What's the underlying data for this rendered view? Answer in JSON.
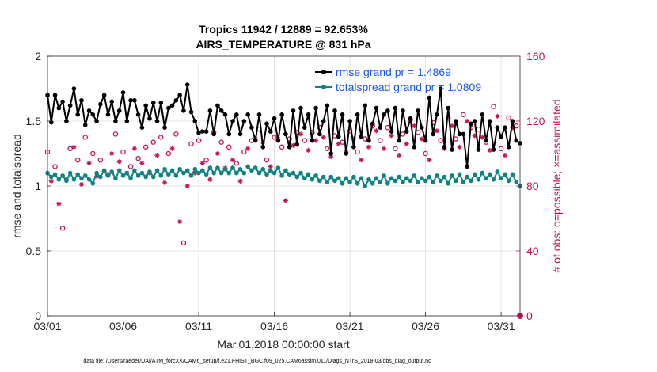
{
  "chart_data": {
    "type": "line",
    "title_line1": "Tropics 11942 / 12889 = 92.653%",
    "title_line2": "AIRS_TEMPERATURE @ 831 hPa",
    "xlabel": "Mar.01,2018 00:00:00 start",
    "ylabel": "rmse and totalspread",
    "ylabel_right": "# of obs: o=possible; ×=assimilated",
    "xlim": [
      0,
      31.25
    ],
    "ylim": [
      0,
      2
    ],
    "ylim_right": [
      0,
      160
    ],
    "x_ticks": [
      0,
      5,
      10,
      15,
      20,
      25,
      30
    ],
    "x_tick_labels": [
      "03/01",
      "03/06",
      "03/11",
      "03/16",
      "03/21",
      "03/26",
      "03/31"
    ],
    "y_ticks": [
      0,
      0.5,
      1,
      1.5,
      2
    ],
    "y_tick_labels": [
      "0",
      "0.5",
      "1",
      "1.5",
      "2"
    ],
    "y_right_ticks": [
      0,
      40,
      80,
      120,
      160
    ],
    "y_right_tick_labels": [
      "0",
      "40",
      "80",
      "120",
      "160"
    ],
    "grid": true,
    "legend_position": "top-right",
    "footer": "data file: /Users/raeder/DAI/ATM_forcXX/CAM6_setup/f.e21.FHIST_BGC.f09_025.CAM6assim.011/Diags_NTrS_2018-03/obs_diag_output.nc",
    "colors": {
      "rmse": "#000000",
      "spread": "#0f8282",
      "obs": "#c8145a"
    },
    "rmse_segments": [
      [
        [
          0,
          1.7
        ],
        [
          0.25,
          1.49
        ],
        [
          0.5,
          1.7
        ],
        [
          0.75,
          1.6
        ],
        [
          1,
          1.65
        ],
        [
          1.25,
          1.5
        ],
        [
          1.5,
          1.62
        ],
        [
          1.75,
          1.75
        ],
        [
          2,
          1.55
        ],
        [
          2.25,
          1.66
        ],
        [
          2.5,
          1.47
        ],
        [
          2.75,
          1.58
        ],
        [
          3,
          1.55
        ],
        [
          3.25,
          1.5
        ],
        [
          3.5,
          1.63
        ],
        [
          3.75,
          1.7
        ],
        [
          4,
          1.55
        ],
        [
          4.25,
          1.65
        ],
        [
          4.5,
          1.5
        ],
        [
          4.75,
          1.58
        ],
        [
          5,
          1.72
        ],
        [
          5.25,
          1.5
        ],
        [
          5.5,
          1.66
        ],
        [
          5.75,
          1.66
        ],
        [
          6,
          1.55
        ],
        [
          6.25,
          1.45
        ],
        [
          6.5,
          1.62
        ],
        [
          6.75,
          1.52
        ],
        [
          7,
          1.64
        ],
        [
          7.25,
          1.5
        ],
        [
          7.5,
          1.64
        ],
        [
          7.75,
          1.45
        ],
        [
          8,
          1.6
        ],
        [
          8.25,
          1.62
        ],
        [
          8.5,
          1.66
        ],
        [
          8.75,
          1.7
        ],
        [
          9,
          1.58
        ],
        [
          9.25,
          1.78
        ],
        [
          9.5,
          1.57
        ],
        [
          9.75,
          1.5
        ],
        [
          10,
          1.41
        ],
        [
          10.25,
          1.42
        ],
        [
          10.5,
          1.42
        ],
        [
          10.75,
          1.58
        ],
        [
          11,
          1.4
        ],
        [
          11.25,
          1.62
        ],
        [
          11.5,
          1.58
        ],
        [
          11.75,
          1.55
        ],
        [
          12,
          1.4
        ],
        [
          12.25,
          1.5
        ],
        [
          12.5,
          1.55
        ],
        [
          12.75,
          1.4
        ],
        [
          13,
          1.5
        ]
      ],
      [
        [
          13.25,
          1.55
        ],
        [
          13.5,
          1.45
        ],
        [
          13.75,
          1.35
        ],
        [
          14,
          1.55
        ],
        [
          14.25,
          1.3
        ],
        [
          14.5,
          1.48
        ],
        [
          14.75,
          1.42
        ],
        [
          15,
          1.52
        ],
        [
          15.25,
          1.35
        ],
        [
          15.5,
          1.55
        ],
        [
          15.75,
          1.4
        ],
        [
          16,
          1.3
        ],
        [
          16.25,
          1.58
        ],
        [
          16.5,
          1.32
        ],
        [
          16.75,
          1.6
        ],
        [
          17,
          1.45
        ],
        [
          17.25,
          1.55
        ],
        [
          17.5,
          1.35
        ],
        [
          17.75,
          1.6
        ],
        [
          18,
          1.4
        ],
        [
          18.25,
          1.5
        ],
        [
          18.5,
          1.62
        ],
        [
          18.75,
          1.25
        ],
        [
          19,
          1.58
        ],
        [
          19.25,
          1.38
        ],
        [
          19.5,
          1.55
        ],
        [
          19.75,
          1.25
        ],
        [
          20,
          1.5
        ],
        [
          20.25,
          1.3
        ],
        [
          20.5,
          1.55
        ],
        [
          20.75,
          1.38
        ],
        [
          21,
          1.62
        ],
        [
          21.25,
          1.35
        ],
        [
          21.5,
          1.48
        ],
        [
          21.75,
          1.6
        ],
        [
          22,
          1.45
        ],
        [
          22.25,
          1.55
        ],
        [
          22.5,
          1.58
        ],
        [
          22.75,
          1.42
        ],
        [
          23,
          1.6
        ],
        [
          23.25,
          1.35
        ],
        [
          23.5,
          1.58
        ],
        [
          23.75,
          1.42
        ],
        [
          24,
          1.52
        ],
        [
          24.25,
          1.3
        ],
        [
          24.5,
          1.58
        ],
        [
          24.75,
          1.45
        ],
        [
          25,
          1.35
        ],
        [
          25.25,
          1.68
        ],
        [
          25.5,
          1.4
        ],
        [
          25.75,
          1.55
        ],
        [
          26,
          1.75
        ],
        [
          26.25,
          1.3
        ],
        [
          26.5,
          1.6
        ],
        [
          26.75,
          1.28
        ],
        [
          27,
          1.5
        ],
        [
          27.25,
          1.4
        ],
        [
          27.5,
          1.4
        ],
        [
          27.75,
          1.15
        ],
        [
          28,
          1.48
        ],
        [
          28.25,
          1.5
        ],
        [
          28.5,
          1.28
        ],
        [
          28.75,
          1.55
        ],
        [
          29,
          1.35
        ],
        [
          29.25,
          1.5
        ],
        [
          29.5,
          1.28
        ],
        [
          29.75,
          1.45
        ],
        [
          30,
          1.38
        ],
        [
          30.25,
          1.45
        ],
        [
          30.5,
          1.3
        ],
        [
          30.75,
          1.5
        ],
        [
          31,
          1.35
        ],
        [
          31.25,
          1.33
        ]
      ]
    ],
    "spread_segments": [
      [
        [
          0,
          1.1
        ],
        [
          0.25,
          1.07
        ],
        [
          0.5,
          1.09
        ],
        [
          0.75,
          1.05
        ],
        [
          1,
          1.08
        ],
        [
          1.25,
          1.04
        ],
        [
          1.5,
          1.1
        ],
        [
          1.75,
          1.05
        ],
        [
          2,
          1.09
        ],
        [
          2.25,
          1.06
        ],
        [
          2.5,
          1.08
        ],
        [
          2.75,
          1.05
        ],
        [
          3,
          1.02
        ],
        [
          3.25,
          1.1
        ],
        [
          3.5,
          1.07
        ],
        [
          3.75,
          1.12
        ],
        [
          4,
          1.08
        ],
        [
          4.25,
          1.11
        ],
        [
          4.5,
          1.06
        ],
        [
          4.75,
          1.12
        ],
        [
          5,
          1.08
        ],
        [
          5.25,
          1.1
        ],
        [
          5.5,
          1.06
        ],
        [
          5.75,
          1.12
        ],
        [
          6,
          1.08
        ],
        [
          6.25,
          1.1
        ],
        [
          6.5,
          1.07
        ],
        [
          6.75,
          1.11
        ],
        [
          7,
          1.07
        ],
        [
          7.25,
          1.12
        ],
        [
          7.5,
          1.08
        ],
        [
          7.75,
          1.13
        ],
        [
          8,
          1.09
        ],
        [
          8.25,
          1.12
        ],
        [
          8.5,
          1.08
        ],
        [
          8.75,
          1.13
        ],
        [
          9,
          1.1
        ],
        [
          9.25,
          1.12
        ],
        [
          9.5,
          1.08
        ],
        [
          9.75,
          1.13
        ],
        [
          10,
          1.1
        ],
        [
          10.25,
          1.12
        ],
        [
          10.5,
          1.09
        ],
        [
          10.75,
          1.14
        ],
        [
          11,
          1.1
        ],
        [
          11.25,
          1.14
        ],
        [
          11.5,
          1.1
        ],
        [
          11.75,
          1.13
        ],
        [
          12,
          1.1
        ],
        [
          12.25,
          1.14
        ],
        [
          12.5,
          1.1
        ],
        [
          12.75,
          1.13
        ],
        [
          13,
          1.1
        ]
      ],
      [
        [
          13.25,
          1.15
        ],
        [
          13.5,
          1.12
        ],
        [
          13.75,
          1.14
        ],
        [
          14,
          1.1
        ],
        [
          14.25,
          1.13
        ],
        [
          14.5,
          1.09
        ],
        [
          14.75,
          1.12
        ],
        [
          15,
          1.1
        ],
        [
          15.25,
          1.14
        ],
        [
          15.5,
          1.08
        ],
        [
          15.75,
          1.12
        ],
        [
          16,
          1.09
        ],
        [
          16.25,
          1.1
        ],
        [
          16.5,
          1.07
        ],
        [
          16.75,
          1.1
        ],
        [
          17,
          1.06
        ],
        [
          17.25,
          1.09
        ],
        [
          17.5,
          1.05
        ],
        [
          17.75,
          1.08
        ],
        [
          18,
          1.04
        ],
        [
          18.25,
          1.07
        ],
        [
          18.5,
          1.03
        ],
        [
          18.75,
          1.07
        ],
        [
          19,
          1.04
        ],
        [
          19.25,
          1.06
        ],
        [
          19.5,
          1.02
        ],
        [
          19.75,
          1.06
        ],
        [
          20,
          1.03
        ],
        [
          20.25,
          1.07
        ],
        [
          20.5,
          1.02
        ],
        [
          20.75,
          1.06
        ],
        [
          21,
          1.0
        ],
        [
          21.25,
          1.05
        ],
        [
          21.5,
          1.02
        ],
        [
          21.75,
          1.06
        ],
        [
          22,
          1.03
        ],
        [
          22.25,
          1.08
        ],
        [
          22.5,
          1.02
        ],
        [
          22.75,
          1.06
        ],
        [
          23,
          1.04
        ],
        [
          23.25,
          1.07
        ],
        [
          23.5,
          1.03
        ],
        [
          23.75,
          1.06
        ],
        [
          24,
          1.04
        ],
        [
          24.25,
          1.08
        ],
        [
          24.5,
          1.03
        ],
        [
          24.75,
          1.06
        ],
        [
          25,
          1.04
        ],
        [
          25.25,
          1.07
        ],
        [
          25.5,
          1.03
        ],
        [
          25.75,
          1.08
        ],
        [
          26,
          1.04
        ],
        [
          26.25,
          1.07
        ],
        [
          26.5,
          1.02
        ],
        [
          26.75,
          1.08
        ],
        [
          27,
          1.04
        ],
        [
          27.25,
          1.09
        ],
        [
          27.5,
          1.03
        ],
        [
          27.75,
          1.07
        ],
        [
          28,
          1.04
        ],
        [
          28.25,
          1.09
        ],
        [
          28.5,
          1.05
        ],
        [
          28.75,
          1.1
        ],
        [
          29,
          1.06
        ],
        [
          29.25,
          1.09
        ],
        [
          29.5,
          1.05
        ],
        [
          29.75,
          1.11
        ],
        [
          30,
          1.06
        ],
        [
          30.25,
          1.09
        ],
        [
          30.5,
          1.04
        ],
        [
          30.75,
          1.09
        ],
        [
          31,
          1.03
        ],
        [
          31.25,
          1.0
        ]
      ]
    ],
    "obs_possible_x": [
      0,
      0.5,
      1,
      1.5,
      2,
      2.5,
      3,
      3.5,
      4,
      4.5,
      5,
      5.5,
      6,
      6.5,
      7,
      7.5,
      8,
      8.5,
      9,
      9.5,
      10,
      10.5,
      11,
      11.5,
      12,
      12.5,
      13,
      13.5,
      14,
      14.5,
      15,
      15.5,
      16,
      16.5,
      17,
      17.5,
      18,
      18.5,
      19,
      19.5,
      20,
      20.5,
      21,
      21.5,
      22,
      22.5,
      23,
      23.5,
      24,
      24.5,
      25,
      25.5,
      26,
      26.5,
      27,
      27.5,
      28,
      28.5,
      29,
      29.5,
      30,
      30.5,
      31
    ],
    "obs_possible": [
      101,
      92,
      54,
      103,
      96,
      110,
      100,
      96,
      87,
      112,
      101,
      92,
      97,
      104,
      107,
      110,
      100,
      112,
      45,
      106,
      108,
      96,
      113,
      107,
      104,
      94,
      101,
      108,
      115,
      96,
      110,
      104,
      109,
      113,
      108,
      113,
      116,
      103,
      111,
      107,
      114,
      101,
      109,
      117,
      108,
      116,
      103,
      112,
      121,
      113,
      100,
      119,
      108,
      122,
      109,
      124,
      116,
      115,
      107,
      129,
      103,
      122,
      117
    ],
    "obs_assim_x": [
      0.25,
      0.75,
      1.25,
      1.75,
      2.25,
      2.75,
      3.25,
      3.75,
      4.25,
      4.75,
      5.25,
      5.75,
      6.25,
      6.75,
      7.25,
      7.75,
      8.25,
      8.75,
      9.25,
      9.75,
      10.25,
      10.75,
      11.25,
      11.75,
      12.25,
      12.75,
      13.25,
      13.75,
      14.25,
      14.75,
      15.25,
      15.75,
      16.25,
      16.75,
      17.25,
      17.75,
      18.25,
      18.75,
      19.25,
      19.75,
      20.25,
      20.75,
      21.25,
      21.75,
      22.25,
      22.75,
      23.25,
      23.75,
      24.25,
      24.75,
      25.25,
      25.75,
      26.25,
      26.75,
      27.25,
      27.75,
      28.25,
      28.75,
      29.25,
      29.75,
      30.25,
      30.75
    ],
    "obs_assim": [
      83,
      69,
      84,
      104,
      81,
      94,
      86,
      89,
      100,
      95,
      88,
      103,
      94,
      88,
      99,
      82,
      103,
      58,
      80,
      88,
      94,
      84,
      100,
      91,
      96,
      83,
      103,
      109,
      107,
      92,
      109,
      71,
      105,
      112,
      102,
      108,
      110,
      98,
      106,
      101,
      109,
      96,
      104,
      114,
      103,
      111,
      99,
      106,
      117,
      109,
      96,
      114,
      103,
      117,
      104,
      120,
      111,
      110,
      102,
      123,
      99,
      116
    ],
    "legend": [
      {
        "label": "rmse grand pr = 1.4869",
        "color": "#1a56e8"
      },
      {
        "label": "totalspread grand pr = 1.0809",
        "color": "#1a56e8"
      }
    ]
  }
}
